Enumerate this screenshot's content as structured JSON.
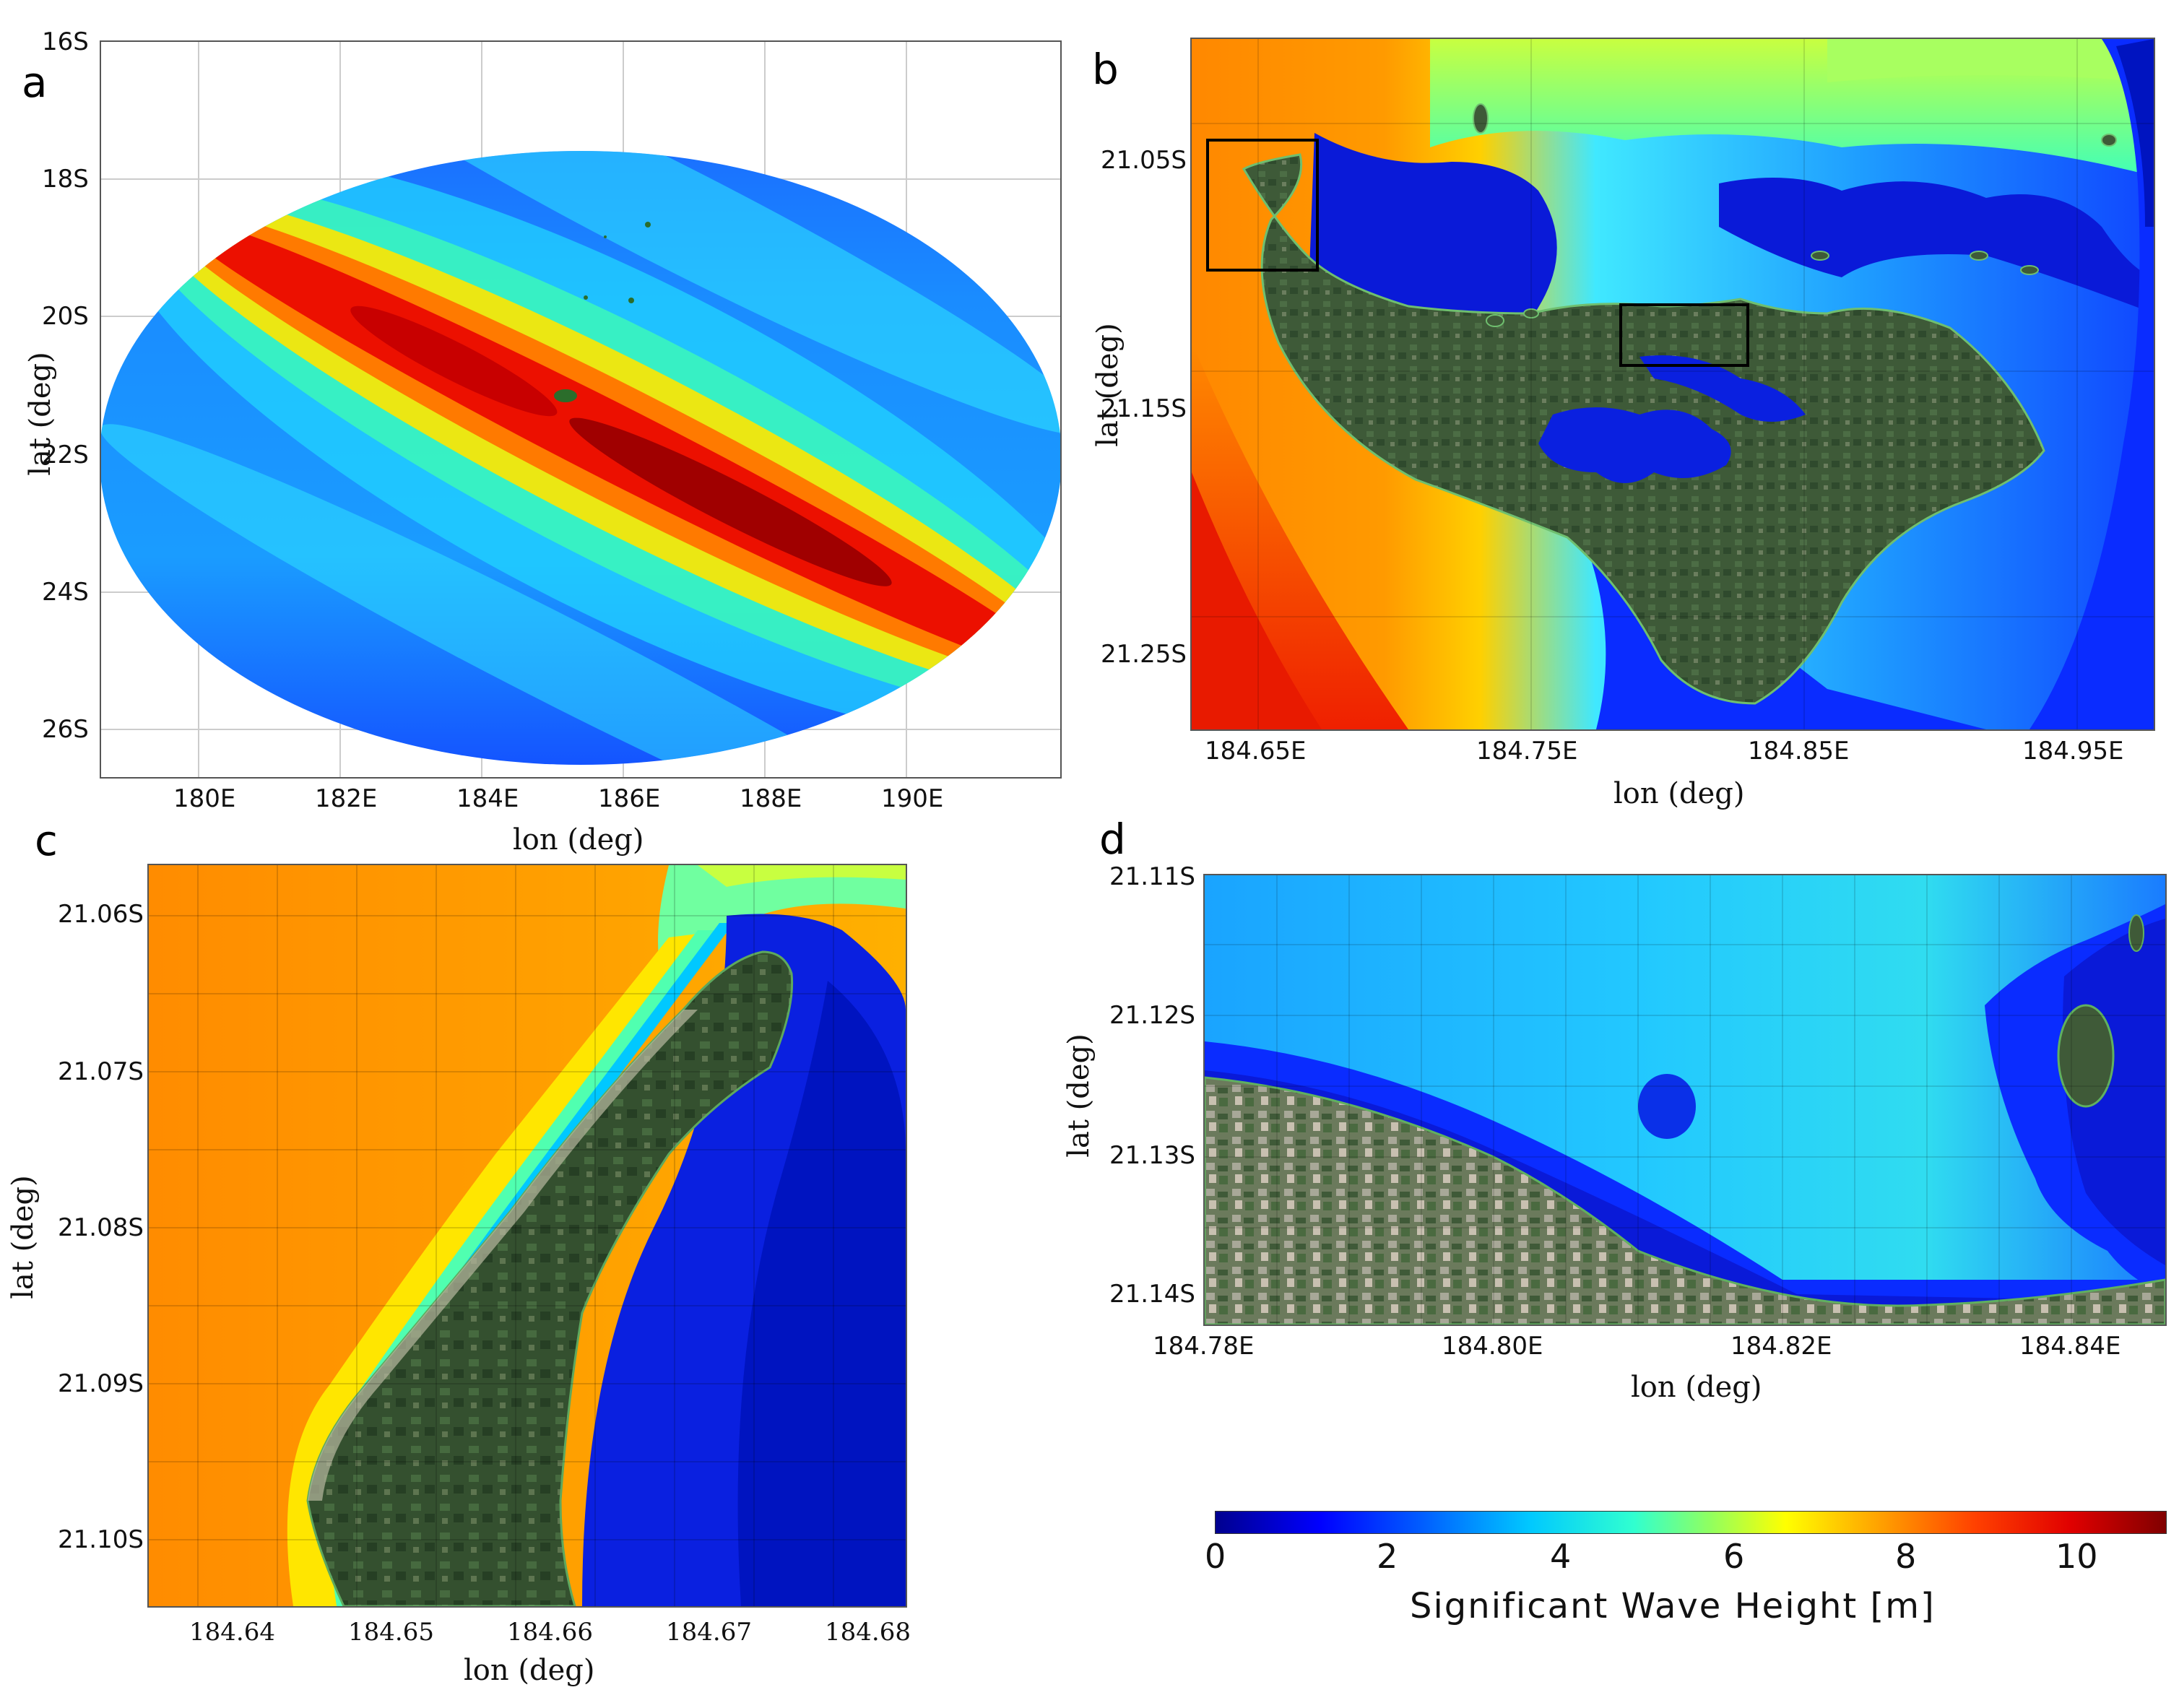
{
  "panels": {
    "a": {
      "letter": "a",
      "lat_ticks": [
        "16S",
        "18S",
        "20S",
        "22S",
        "24S",
        "26S"
      ],
      "lon_ticks": [
        "180E",
        "182E",
        "184E",
        "186E",
        "188E",
        "190E"
      ],
      "xlabel": "lon (deg)",
      "ylabel": "lat (deg)"
    },
    "b": {
      "letter": "b",
      "lat_ticks": [
        "21.05S",
        "21.15S",
        "21.25S"
      ],
      "lon_ticks": [
        "184.65E",
        "184.75E",
        "184.85E",
        "184.95E"
      ],
      "xlabel": "lon (deg)",
      "ylabel": "lat (deg)"
    },
    "c": {
      "letter": "c",
      "lat_ticks": [
        "21.06S",
        "21.07S",
        "21.08S",
        "21.09S",
        "21.10S"
      ],
      "lon_ticks": [
        "184.64",
        "184.65",
        "184.66",
        "184.67",
        "184.68"
      ],
      "xlabel": "lon (deg)",
      "ylabel": "lat (deg)"
    },
    "d": {
      "letter": "d",
      "lat_ticks": [
        "21.11S",
        "21.12S",
        "21.13S",
        "21.14S"
      ],
      "lon_ticks": [
        "184.78E",
        "184.80E",
        "184.82E",
        "184.84E"
      ],
      "xlabel": "lon (deg)",
      "ylabel": "lat (deg)"
    }
  },
  "colorbar": {
    "ticks": [
      "0",
      "2",
      "4",
      "6",
      "8",
      "10"
    ],
    "title": "Significant Wave Height [m]",
    "range": [
      0,
      11
    ],
    "colormap": "jet"
  },
  "colors": {
    "deep_blue": "#00008f",
    "blue": "#0030ff",
    "cyan": "#00d8ff",
    "green": "#40ffb0",
    "yellow": "#ffef00",
    "orange": "#ff8a00",
    "red": "#e20000",
    "dark_red": "#800000",
    "land": "#3d5a3a"
  }
}
